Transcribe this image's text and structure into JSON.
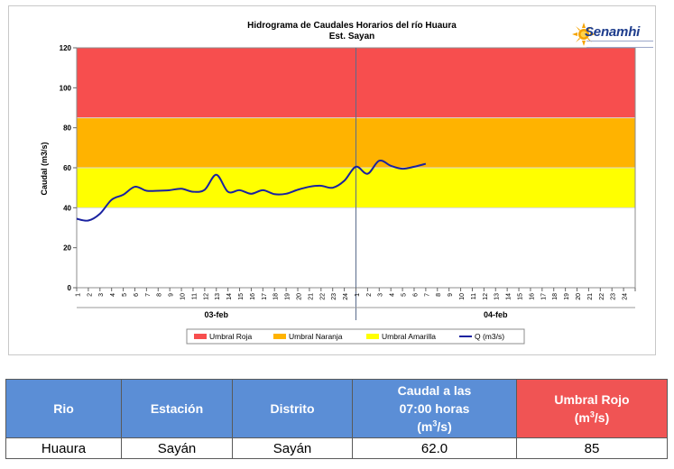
{
  "chart_data": {
    "type": "line",
    "title": "Hidrograma de Caudales Horarios del río Huaura",
    "subtitle": "Est. Sayan",
    "ylabel": "Caudal  (m3/s)",
    "ylim": [
      0,
      120
    ],
    "yticks": [
      0,
      20,
      40,
      60,
      80,
      100,
      120
    ],
    "xtick_labels": [
      "1",
      "2",
      "3",
      "4",
      "5",
      "6",
      "7",
      "8",
      "9",
      "10",
      "11",
      "12",
      "13",
      "14",
      "15",
      "16",
      "17",
      "18",
      "19",
      "20",
      "21",
      "22",
      "23",
      "24",
      "1",
      "2",
      "3",
      "4",
      "5",
      "6",
      "7",
      "8",
      "9",
      "10",
      "11",
      "12",
      "13",
      "14",
      "15",
      "16",
      "17",
      "18",
      "19",
      "20",
      "21",
      "22",
      "23",
      "24"
    ],
    "day_labels": [
      "03-feb",
      "04-feb"
    ],
    "bands": [
      {
        "name": "Umbral Roja",
        "from": 85,
        "to": 120,
        "color": "#f74e4e"
      },
      {
        "name": "Umbral Naranja",
        "from": 60,
        "to": 85,
        "color": "#ffb300"
      },
      {
        "name": "Umbral Amarilla",
        "from": 40,
        "to": 60,
        "color": "#ffff00"
      }
    ],
    "series": [
      {
        "name": "Q (m3/s)",
        "color": "#1a22a0",
        "values": [
          34.5,
          33.6,
          37.0,
          44.0,
          46.5,
          50.5,
          48.5,
          48.5,
          48.8,
          49.5,
          48.0,
          49.0,
          56.5,
          48.0,
          48.8,
          47.0,
          48.8,
          46.8,
          47.0,
          49.0,
          50.5,
          51.0,
          50.0,
          53.5,
          60.5,
          57.0,
          63.5,
          61.0,
          59.5,
          60.5,
          62.0
        ]
      }
    ],
    "legend": [
      "Umbral Roja",
      "Umbral Naranja",
      "Umbral Amarilla",
      "Q (m3/s)"
    ],
    "legend_position": "bottom"
  },
  "logo": {
    "text": "Senamhi"
  },
  "table": {
    "headers": {
      "rio": "Rio",
      "estacion": "Estación",
      "distrito": "Distrito",
      "caudal_line1": "Caudal a las",
      "caudal_line2": "07:00 horas",
      "caudal_unit_a": "(m",
      "caudal_unit_sup": "3",
      "caudal_unit_b": "/s)",
      "umbral_line1": "Umbral Rojo",
      "umbral_unit_a": "(m",
      "umbral_unit_sup": "3",
      "umbral_unit_b": "/s)"
    },
    "row": {
      "rio": "Huaura",
      "estacion": "Sayán",
      "distrito": "Sayán",
      "caudal": "62.0",
      "umbral": "85"
    }
  }
}
